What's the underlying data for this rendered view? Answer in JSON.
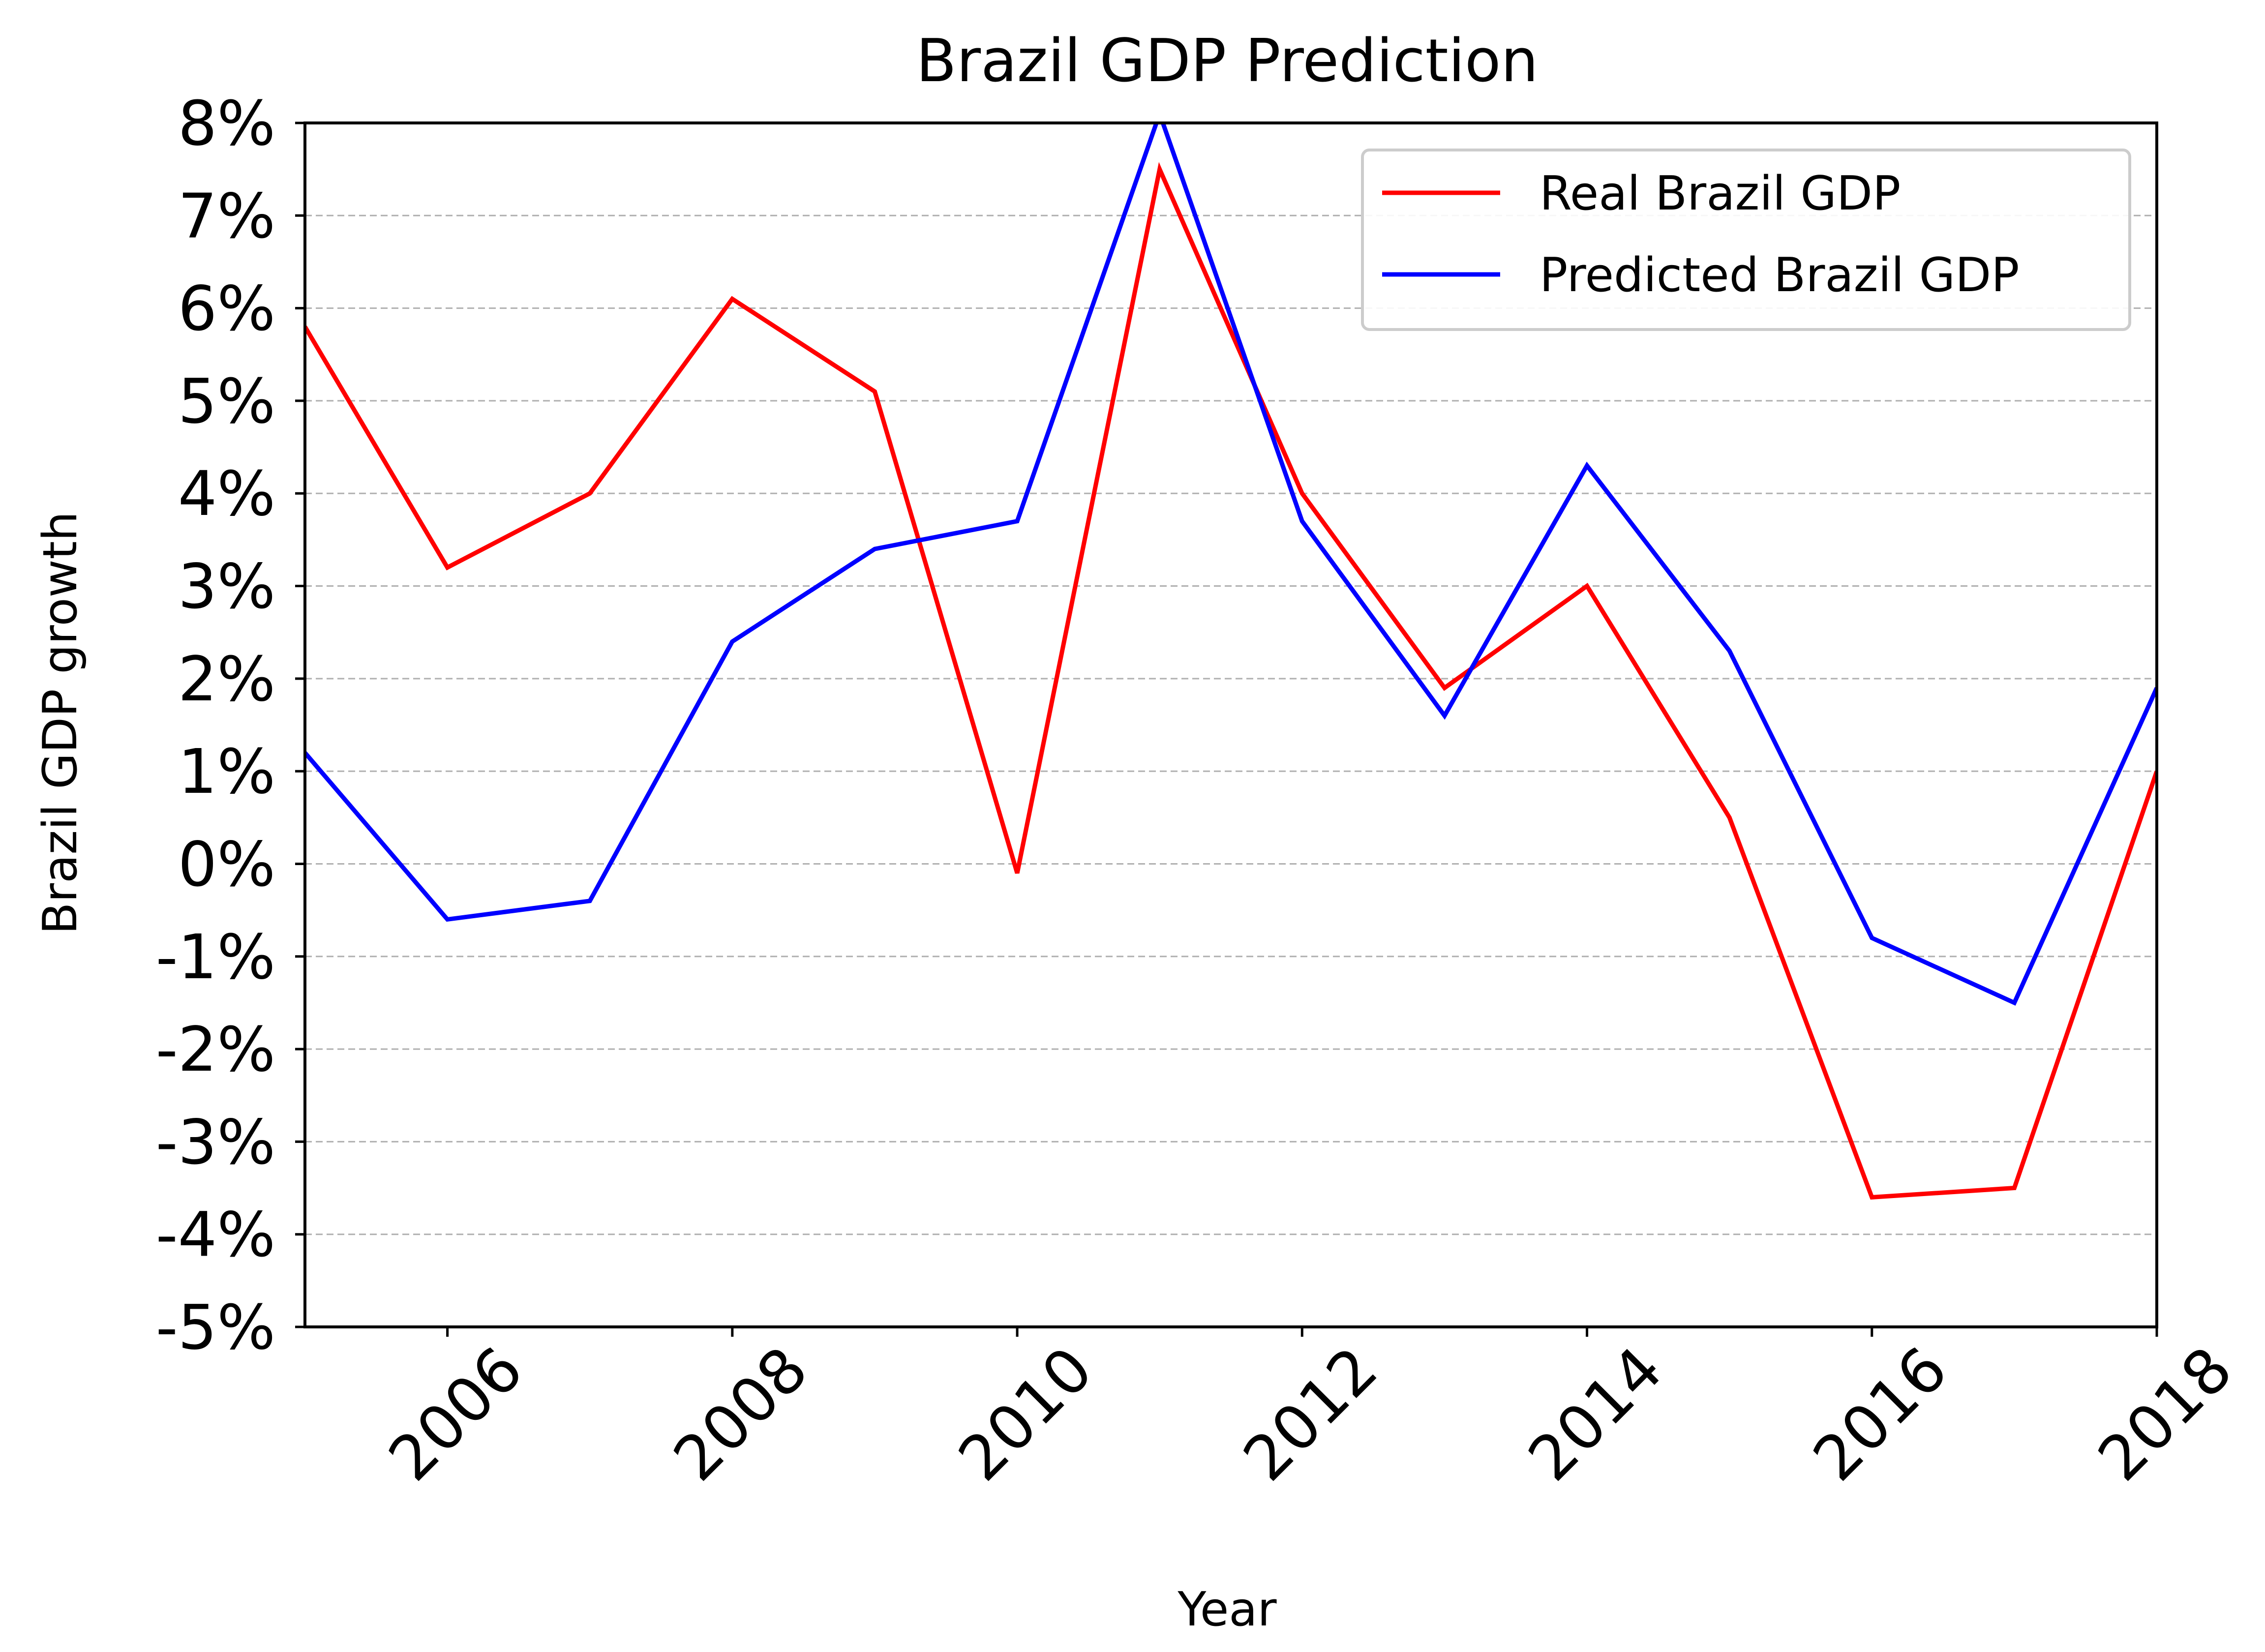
{
  "chart_data": {
    "type": "line",
    "title": "Brazil GDP Prediction",
    "xlabel": "Year",
    "ylabel": "Brazil GDP growth",
    "xlim": [
      2005,
      2018
    ],
    "ylim": [
      -5,
      8
    ],
    "xticks": [
      2006,
      2008,
      2010,
      2012,
      2014,
      2016,
      2018
    ],
    "xtick_labels": [
      "2006",
      "2008",
      "2010",
      "2012",
      "2014",
      "2016",
      "2018"
    ],
    "yticks": [
      -5,
      -4,
      -3,
      -2,
      -1,
      0,
      1,
      2,
      3,
      4,
      5,
      6,
      7,
      8
    ],
    "ytick_labels": [
      "-5%",
      "-4%",
      "-3%",
      "-2%",
      "-1%",
      "0%",
      "1%",
      "2%",
      "3%",
      "4%",
      "5%",
      "6%",
      "7%",
      "8%"
    ],
    "grid": "y-dashed",
    "legend_position": "top-right",
    "x": [
      2005,
      2006,
      2007,
      2008,
      2009,
      2010,
      2011,
      2012,
      2013,
      2014,
      2015,
      2016,
      2017,
      2018
    ],
    "series": [
      {
        "name": "Real Brazil GDP",
        "color": "#ff0000",
        "values": [
          5.8,
          3.2,
          4.0,
          6.1,
          5.1,
          -0.1,
          7.5,
          4.0,
          1.9,
          3.0,
          0.5,
          -3.6,
          -3.5,
          1.0
        ]
      },
      {
        "name": "Predicted Brazil GDP",
        "color": "#0000ff",
        "values": [
          1.2,
          -0.6,
          -0.4,
          2.4,
          3.4,
          3.7,
          8.1,
          3.7,
          1.6,
          4.3,
          2.3,
          -0.8,
          -1.5,
          1.9
        ]
      }
    ]
  }
}
